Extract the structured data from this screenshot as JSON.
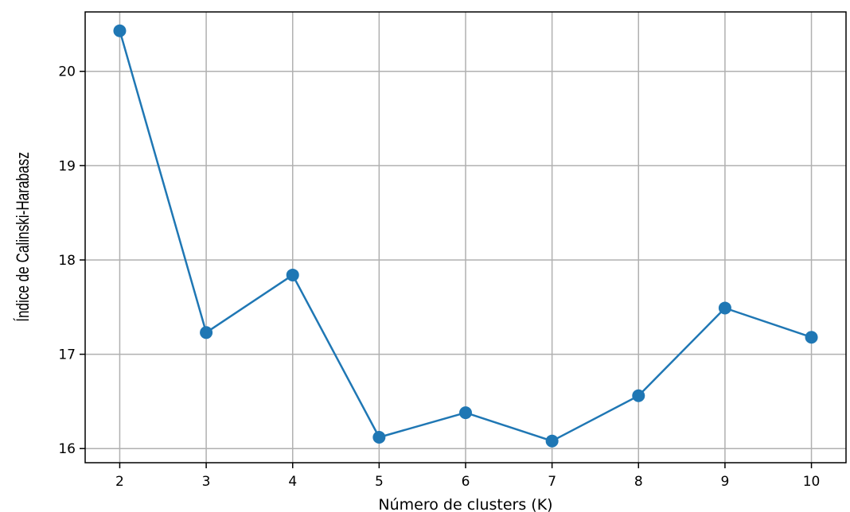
{
  "chart_data": {
    "type": "line",
    "title": "",
    "xlabel": "Número de clusters (K)",
    "ylabel": "Índice de Calinski-Harabasz",
    "x": [
      2,
      3,
      4,
      5,
      6,
      7,
      8,
      9,
      10
    ],
    "series": [
      {
        "values": [
          20.43,
          17.23,
          17.84,
          16.12,
          16.38,
          16.08,
          16.56,
          17.49,
          17.18
        ],
        "color": "#1f77b4",
        "marker": "circle"
      }
    ],
    "xticks": [
      "2",
      "3",
      "4",
      "5",
      "6",
      "7",
      "8",
      "9",
      "10"
    ],
    "yticks": [
      "16",
      "17",
      "18",
      "19",
      "20"
    ],
    "xlim": [
      1.6,
      10.4
    ],
    "ylim": [
      15.85,
      20.63
    ],
    "grid": true
  }
}
